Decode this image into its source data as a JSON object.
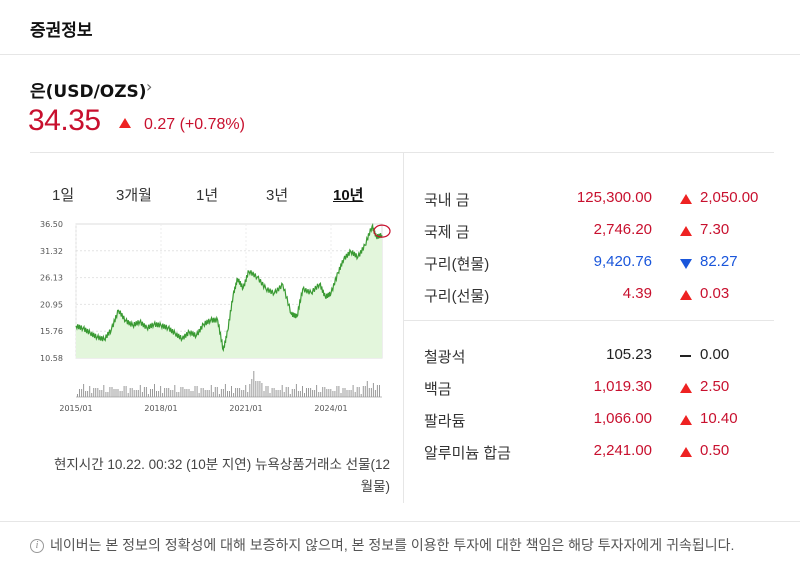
{
  "card": {
    "title": "증권정보"
  },
  "asset": {
    "name": "은(USD/OZS)",
    "chevron": "›",
    "price": "34.35",
    "change": "0.27 (+0.78%)",
    "direction": "up",
    "color_up": "#c8102e"
  },
  "period_tabs": [
    {
      "label": "1일",
      "active": false
    },
    {
      "label": "3개월",
      "active": false
    },
    {
      "label": "1년",
      "active": false
    },
    {
      "label": "3년",
      "active": false
    },
    {
      "label": "10년",
      "active": true
    }
  ],
  "chart_data": {
    "type": "area",
    "y_ticks": [
      "36.50",
      "31.32",
      "26.13",
      "20.95",
      "15.76",
      "10.58"
    ],
    "ylim": [
      10.58,
      36.5
    ],
    "x_ticks": [
      "2015/01",
      "2018/01",
      "2021/01",
      "2024/01"
    ],
    "xlim": [
      2015.0,
      2025.8
    ],
    "grid": true,
    "series_color": "#3a9a33",
    "fill_color": "#e3f6dc",
    "highlight_last_point": true,
    "x": [
      2015.0,
      2015.25,
      2015.5,
      2015.75,
      2016.0,
      2016.25,
      2016.5,
      2016.75,
      2017.0,
      2017.25,
      2017.5,
      2017.75,
      2018.0,
      2018.25,
      2018.5,
      2018.75,
      2019.0,
      2019.25,
      2019.5,
      2019.75,
      2020.0,
      2020.2,
      2020.35,
      2020.55,
      2020.7,
      2020.9,
      2021.1,
      2021.4,
      2021.7,
      2022.0,
      2022.3,
      2022.6,
      2022.8,
      2023.0,
      2023.3,
      2023.6,
      2023.8,
      2024.0,
      2024.25,
      2024.45,
      2024.7,
      2024.95,
      2025.2,
      2025.45,
      2025.6,
      2025.8
    ],
    "y": [
      16.8,
      16.3,
      15.4,
      14.6,
      14.2,
      16.1,
      19.8,
      17.8,
      16.9,
      17.6,
      16.4,
      17.1,
      16.9,
      16.4,
      15.3,
      14.3,
      15.6,
      14.9,
      17.1,
      17.9,
      17.9,
      12.1,
      15.8,
      22.8,
      25.9,
      24.1,
      27.4,
      26.2,
      24.0,
      23.1,
      24.8,
      19.1,
      18.6,
      23.9,
      23.2,
      24.9,
      22.4,
      23.1,
      27.1,
      29.7,
      31.2,
      30.1,
      32.4,
      36.1,
      34.0,
      34.35
    ]
  },
  "volume_color": "#999999",
  "source": {
    "line1": "현지시간 10.22. 00:32 (10분 지연) 뉴욕상품거래소 선물(12",
    "line2": "월물)"
  },
  "markets": [
    {
      "name": "국내 금",
      "price": "125,300.00",
      "direction": "up",
      "change": "2,050.00"
    },
    {
      "name": "국제 금",
      "price": "2,746.20",
      "direction": "up",
      "change": "7.30"
    },
    {
      "name": "구리(현물)",
      "price": "9,420.76",
      "direction": "down",
      "change": "82.27"
    },
    {
      "name": "구리(선물)",
      "price": "4.39",
      "direction": "up",
      "change": "0.03"
    },
    {
      "name": "철광석",
      "price": "105.23",
      "direction": "flat",
      "change": "0.00"
    },
    {
      "name": "백금",
      "price": "1,019.30",
      "direction": "up",
      "change": "2.50"
    },
    {
      "name": "팔라듐",
      "price": "1,066.00",
      "direction": "up",
      "change": "10.40"
    },
    {
      "name": "알루미늄 합금",
      "price": "2,241.00",
      "direction": "up",
      "change": "0.50"
    }
  ],
  "disclaimer": {
    "icon": "info-icon",
    "text": "네이버는 본 정보의 정확성에 대해 보증하지 않으며, 본 정보를 이용한 투자에 대한 책임은 해당 투자자에게 귀속됩니다."
  }
}
